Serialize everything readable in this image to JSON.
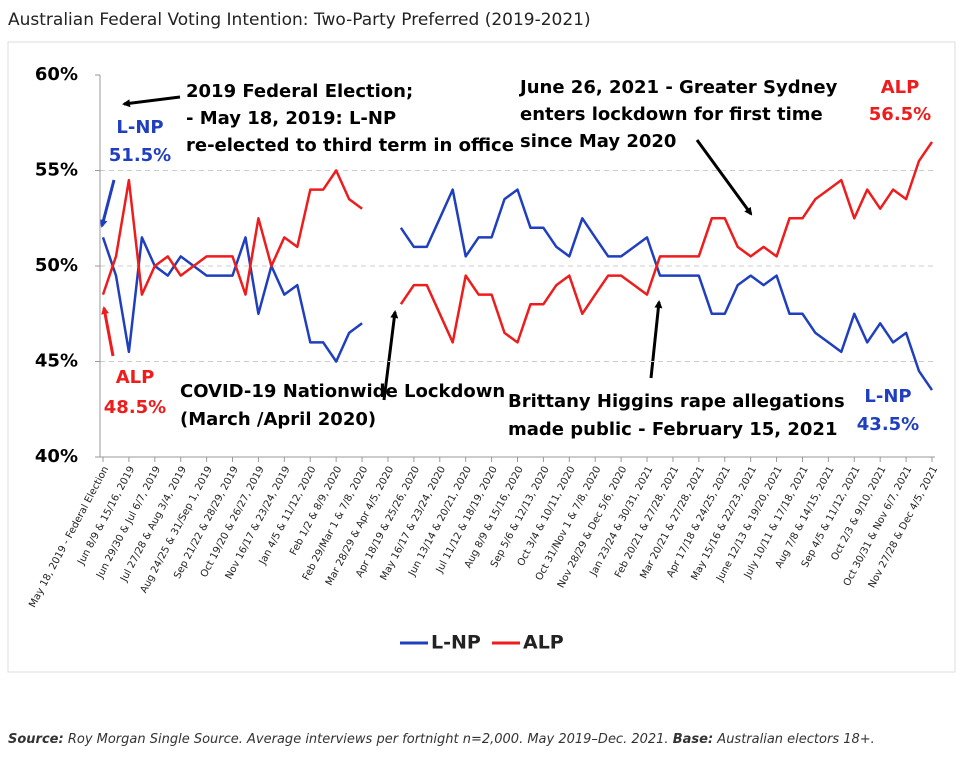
{
  "chart_data": {
    "type": "line",
    "title": "Australian Federal Voting Intention: Two-Party Preferred (2019-2021)",
    "categories": [
      "May 18, 2019 - Federal Election",
      null,
      "Jun 8/9 & 15/16, 2019",
      null,
      "Jun 29/30 & Jul 6/7, 2019",
      null,
      "Jul 27/28 & Aug 3/4, 2019",
      null,
      "Aug 24/25 & 31/Sep 1, 2019",
      null,
      "Sep 21/22 & 28/29, 2019",
      null,
      "Oct 19/20 & 26/27, 2019",
      null,
      "Nov 16/17 & 23/24, 2019",
      null,
      "Jan 4/5 & 11/12, 2020",
      null,
      "Feb 1/2 & 8/9, 2020",
      null,
      "Feb 29/Mar 1 & 7/8, 2020",
      null,
      "Mar 28/29 & Apr 4/5, 2020",
      null,
      "Apr 18/19 & 25/26, 2020",
      null,
      "May 16/17 & 23/24, 2020",
      null,
      "Jun 13/14 & 20/21, 2020",
      null,
      "Jul 11/12 & 18/19, 2020",
      null,
      "Aug 8/9 & 15/16, 2020",
      null,
      "Sep 5/6 & 12/13, 2020",
      null,
      "Oct 3/4 & 10/11, 2020",
      null,
      "Oct 31/Nov 1 & 7/8, 2020",
      null,
      "Nov 28/29 & Dec 5/6, 2020",
      null,
      "Jan 23/24 & 30/31, 2021",
      null,
      "Feb 20/21 & 27/28, 2021",
      null,
      "Mar 20/21 & 27/28, 2021",
      null,
      "Apr 17/18 & 24/25, 2021",
      null,
      "May 15/16 & 22/23, 2021",
      null,
      "June 12/13 & 19/20, 2021",
      null,
      "July 10/11 & 17/18, 2021",
      null,
      "Aug 7/8 & 14/15, 2021",
      null,
      "Sep 4/5 & 11/12, 2021",
      null,
      "Oct 2/3 & 9/10, 2021",
      null,
      "Oct 30/31 & Nov 6/7, 2021",
      null,
      "Nov 27/28 & Dec 4/5, 2021"
    ],
    "series": [
      {
        "name": "L-NP",
        "color": "#1f3fbf",
        "values": [
          51.5,
          49.5,
          45.5,
          51.5,
          50,
          49.5,
          50.5,
          50,
          49.5,
          49.5,
          49.5,
          51.5,
          47.5,
          50,
          48.5,
          49,
          46,
          46,
          45,
          46.5,
          47,
          null,
          null,
          52,
          51,
          51,
          52.5,
          54,
          50.5,
          51.5,
          51.5,
          53.5,
          54,
          52,
          52,
          51,
          50.5,
          52.5,
          51.5,
          50.5,
          50.5,
          51,
          51.5,
          49.5,
          49.5,
          49.5,
          49.5,
          47.5,
          47.5,
          49,
          49.5,
          49,
          49.5,
          47.5,
          47.5,
          46.5,
          46,
          45.5,
          47.5,
          46,
          47,
          46,
          46.5,
          44.5,
          43.5
        ]
      },
      {
        "name": "ALP",
        "color": "#ee1c1c",
        "values": [
          48.5,
          50.5,
          54.5,
          48.5,
          50,
          50.5,
          49.5,
          50,
          50.5,
          50.5,
          50.5,
          48.5,
          52.5,
          50,
          51.5,
          51,
          54,
          54,
          55,
          53.5,
          53,
          null,
          null,
          48,
          49,
          49,
          47.5,
          46,
          49.5,
          48.5,
          48.5,
          46.5,
          46,
          48,
          48,
          49,
          49.5,
          47.5,
          48.5,
          49.5,
          49.5,
          49,
          48.5,
          50.5,
          50.5,
          50.5,
          50.5,
          52.5,
          52.5,
          51,
          50.5,
          51,
          50.5,
          52.5,
          52.5,
          53.5,
          54,
          54.5,
          52.5,
          54,
          53,
          54,
          53.5,
          55.5,
          56.5
        ]
      }
    ],
    "ylim": [
      40,
      60
    ],
    "yticks": [
      {
        "value": 40,
        "label": "40%"
      },
      {
        "value": 45,
        "label": "45%"
      },
      {
        "value": 50,
        "label": "50%"
      },
      {
        "value": 55,
        "label": "55%"
      },
      {
        "value": 60,
        "label": "60%"
      }
    ],
    "grid": true,
    "legend": "bottom",
    "annotations": [
      {
        "lines": [
          "2019 Federal Election;",
          "- May 18, 2019: L-NP",
          "re-elected to third term in office"
        ],
        "color": "#000000"
      },
      {
        "lines": [
          "L-NP",
          "51.5%"
        ],
        "color": "#1f3fbf"
      },
      {
        "lines": [
          "ALP",
          "48.5%"
        ],
        "color": "#ee1c1c"
      },
      {
        "lines": [
          "COVID-19 Nationwide Lockdown",
          "(March /April 2020)"
        ],
        "color": "#000000"
      },
      {
        "lines": [
          "June 26, 2021 - Greater Sydney",
          "enters lockdown for first time",
          "since May 2020"
        ],
        "color": "#000000"
      },
      {
        "lines": [
          "ALP",
          "56.5%"
        ],
        "color": "#ee1c1c"
      },
      {
        "lines": [
          "Brittany Higgins rape allegations",
          "made public - February 15, 2021"
        ],
        "color": "#000000"
      },
      {
        "lines": [
          "L-NP",
          "43.5%"
        ],
        "color": "#1f3fbf"
      }
    ]
  },
  "footnote": {
    "source_label": "Source:",
    "source_text": "Roy Morgan Single Source. Average interviews per fortnight n=2,000. May 2019–Dec. 2021.",
    "base_label": "Base:",
    "base_text": "Australian electors 18+."
  }
}
